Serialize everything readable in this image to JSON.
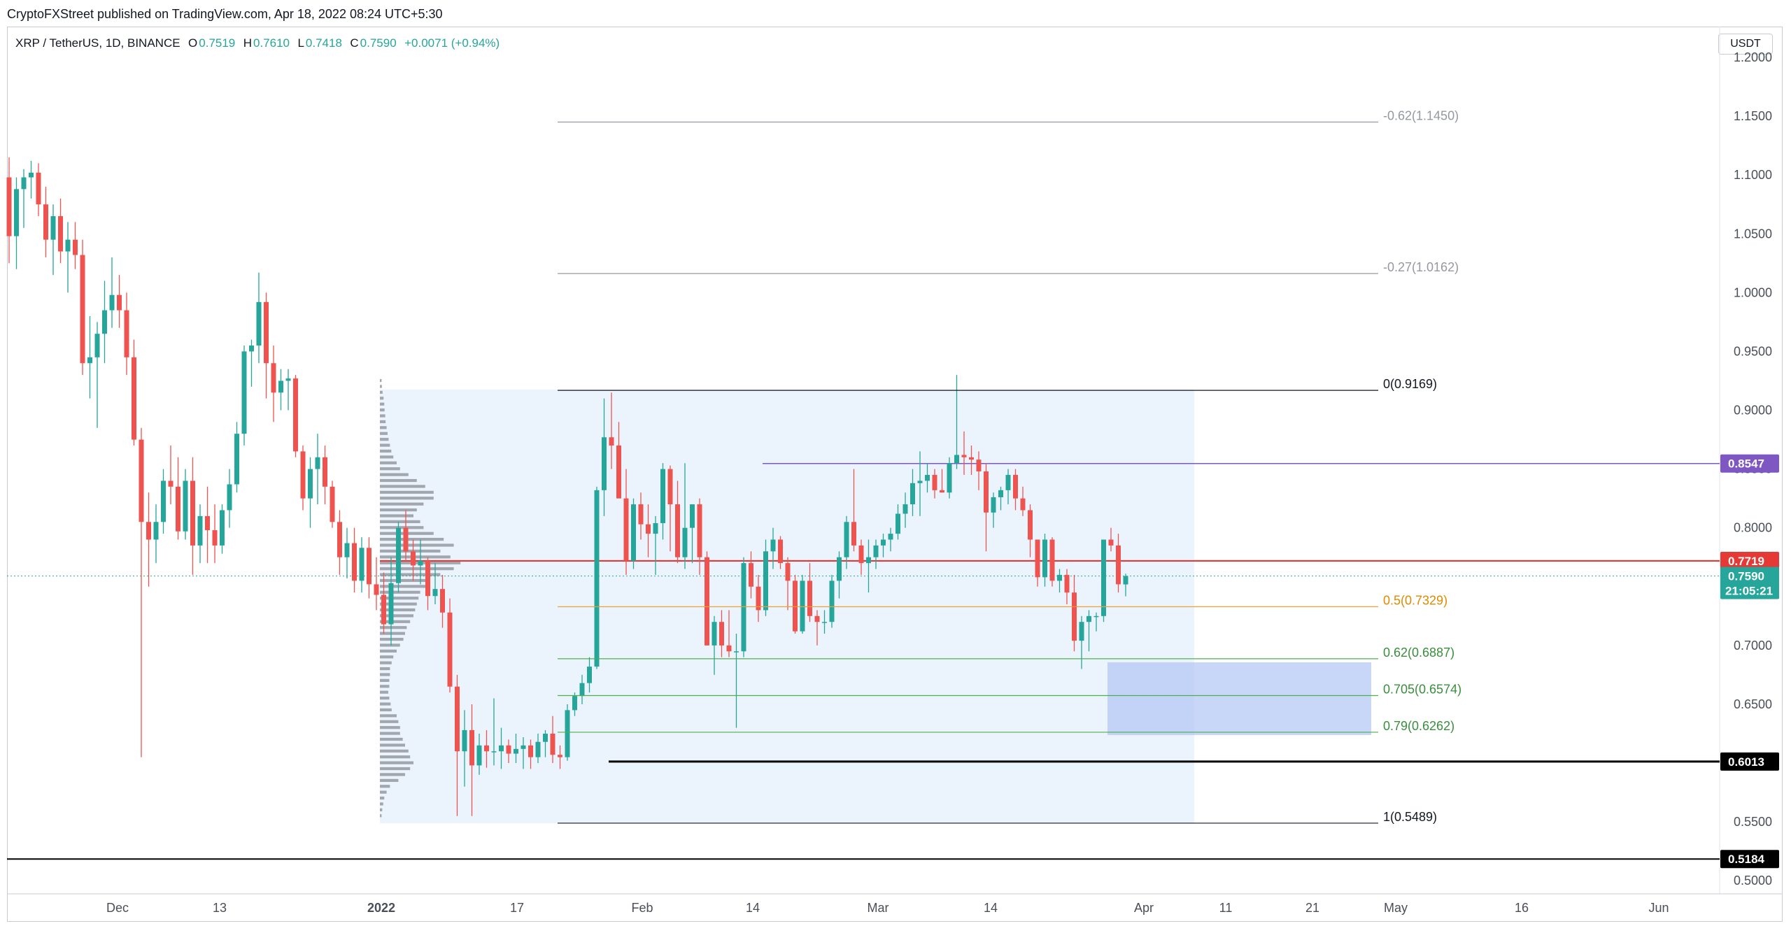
{
  "publisher": "CryptoFXStreet published on TradingView.com, Apr 18, 2022 08:24 UTC+5:30",
  "legend": {
    "symbol": "XRP / TetherUS, 1D, BINANCE",
    "o_label": "O",
    "o_value": "0.7519",
    "h_label": "H",
    "h_value": "0.7610",
    "l_label": "L",
    "l_value": "0.7418",
    "c_label": "C",
    "c_value": "0.7590",
    "change": "+0.0071 (+0.94%)"
  },
  "currency_button": "USDT",
  "colors": {
    "up": "#26a69a",
    "down": "#ef5350",
    "fib_orange": "#f0a030",
    "fib_green": "#4caf50",
    "purple": "#7e57c2",
    "red_line": "#e53935"
  },
  "chart_data": {
    "type": "candlestick",
    "ylim": [
      0.49,
      1.225
    ],
    "x_ticks": [
      "Dec",
      "13",
      "2022",
      "17",
      "Feb",
      "14",
      "Mar",
      "14",
      "Apr",
      "11",
      "21",
      "May",
      "16",
      "Jun"
    ],
    "y_ticks": [
      "1.2000",
      "1.1500",
      "1.1000",
      "1.0500",
      "1.0000",
      "0.9500",
      "0.9000",
      "0.8500",
      "0.8000",
      "0.7500",
      "0.7000",
      "0.6500",
      "0.6000",
      "0.5500",
      "0.5000"
    ],
    "candles": [
      [
        1.098,
        1.115,
        1.025,
        1.048
      ],
      [
        1.048,
        1.098,
        1.02,
        1.088
      ],
      [
        1.088,
        1.105,
        1.055,
        1.098
      ],
      [
        1.098,
        1.112,
        1.08,
        1.102
      ],
      [
        1.102,
        1.11,
        1.065,
        1.075
      ],
      [
        1.075,
        1.09,
        1.03,
        1.045
      ],
      [
        1.045,
        1.075,
        1.015,
        1.065
      ],
      [
        1.065,
        1.08,
        1.025,
        1.035
      ],
      [
        1.035,
        1.06,
        1.0,
        1.045
      ],
      [
        1.045,
        1.06,
        1.02,
        1.032
      ],
      [
        1.032,
        1.045,
        0.93,
        0.94
      ],
      [
        0.94,
        0.98,
        0.91,
        0.945
      ],
      [
        0.945,
        0.975,
        0.885,
        0.965
      ],
      [
        0.965,
        1.01,
        0.94,
        0.985
      ],
      [
        0.985,
        1.03,
        0.97,
        0.998
      ],
      [
        0.998,
        1.015,
        0.97,
        0.985
      ],
      [
        0.985,
        1.0,
        0.93,
        0.945
      ],
      [
        0.945,
        0.96,
        0.87,
        0.875
      ],
      [
        0.875,
        0.885,
        0.605,
        0.805
      ],
      [
        0.805,
        0.83,
        0.75,
        0.79
      ],
      [
        0.79,
        0.82,
        0.77,
        0.805
      ],
      [
        0.805,
        0.85,
        0.795,
        0.84
      ],
      [
        0.84,
        0.87,
        0.82,
        0.835
      ],
      [
        0.835,
        0.86,
        0.79,
        0.797
      ],
      [
        0.797,
        0.85,
        0.79,
        0.84
      ],
      [
        0.84,
        0.86,
        0.76,
        0.785
      ],
      [
        0.785,
        0.82,
        0.77,
        0.81
      ],
      [
        0.81,
        0.835,
        0.77,
        0.798
      ],
      [
        0.798,
        0.82,
        0.77,
        0.785
      ],
      [
        0.785,
        0.82,
        0.778,
        0.815
      ],
      [
        0.815,
        0.85,
        0.8,
        0.837
      ],
      [
        0.837,
        0.89,
        0.83,
        0.88
      ],
      [
        0.88,
        0.955,
        0.87,
        0.95
      ],
      [
        0.95,
        0.96,
        0.92,
        0.955
      ],
      [
        0.955,
        1.017,
        0.94,
        0.992
      ],
      [
        0.992,
        1.0,
        0.91,
        0.94
      ],
      [
        0.94,
        0.955,
        0.89,
        0.915
      ],
      [
        0.915,
        0.935,
        0.9,
        0.925
      ],
      [
        0.925,
        0.935,
        0.9,
        0.927
      ],
      [
        0.927,
        0.93,
        0.86,
        0.865
      ],
      [
        0.865,
        0.87,
        0.815,
        0.825
      ],
      [
        0.825,
        0.86,
        0.8,
        0.85
      ],
      [
        0.85,
        0.88,
        0.82,
        0.86
      ],
      [
        0.86,
        0.87,
        0.82,
        0.835
      ],
      [
        0.835,
        0.84,
        0.8,
        0.805
      ],
      [
        0.805,
        0.815,
        0.76,
        0.775
      ],
      [
        0.775,
        0.8,
        0.757,
        0.787
      ],
      [
        0.787,
        0.8,
        0.745,
        0.755
      ],
      [
        0.755,
        0.792,
        0.745,
        0.783
      ],
      [
        0.783,
        0.792,
        0.74,
        0.752
      ],
      [
        0.752,
        0.775,
        0.73,
        0.743
      ],
      [
        0.743,
        0.762,
        0.71,
        0.718
      ],
      [
        0.718,
        0.775,
        0.7,
        0.753
      ],
      [
        0.753,
        0.805,
        0.745,
        0.8
      ],
      [
        0.8,
        0.815,
        0.772,
        0.78
      ],
      [
        0.78,
        0.79,
        0.755,
        0.768
      ],
      [
        0.768,
        0.79,
        0.752,
        0.772
      ],
      [
        0.772,
        0.775,
        0.73,
        0.742
      ],
      [
        0.742,
        0.77,
        0.735,
        0.748
      ],
      [
        0.748,
        0.76,
        0.715,
        0.728
      ],
      [
        0.728,
        0.74,
        0.66,
        0.665
      ],
      [
        0.665,
        0.675,
        0.555,
        0.61
      ],
      [
        0.61,
        0.645,
        0.58,
        0.628
      ],
      [
        0.628,
        0.65,
        0.555,
        0.598
      ],
      [
        0.598,
        0.625,
        0.59,
        0.615
      ],
      [
        0.615,
        0.628,
        0.596,
        0.61
      ],
      [
        0.61,
        0.655,
        0.598,
        0.61
      ],
      [
        0.61,
        0.63,
        0.595,
        0.615
      ],
      [
        0.615,
        0.62,
        0.6,
        0.608
      ],
      [
        0.608,
        0.625,
        0.6,
        0.612
      ],
      [
        0.612,
        0.622,
        0.595,
        0.615
      ],
      [
        0.615,
        0.62,
        0.595,
        0.605
      ],
      [
        0.605,
        0.625,
        0.6,
        0.618
      ],
      [
        0.618,
        0.628,
        0.605,
        0.625
      ],
      [
        0.625,
        0.64,
        0.6,
        0.607
      ],
      [
        0.607,
        0.615,
        0.595,
        0.605
      ],
      [
        0.605,
        0.65,
        0.602,
        0.645
      ],
      [
        0.645,
        0.66,
        0.64,
        0.657
      ],
      [
        0.657,
        0.675,
        0.65,
        0.668
      ],
      [
        0.668,
        0.69,
        0.66,
        0.682
      ],
      [
        0.682,
        0.835,
        0.68,
        0.832
      ],
      [
        0.832,
        0.91,
        0.81,
        0.877
      ],
      [
        0.877,
        0.915,
        0.85,
        0.87
      ],
      [
        0.87,
        0.89,
        0.83,
        0.825
      ],
      [
        0.825,
        0.85,
        0.76,
        0.772
      ],
      [
        0.772,
        0.825,
        0.765,
        0.82
      ],
      [
        0.82,
        0.83,
        0.79,
        0.803
      ],
      [
        0.803,
        0.82,
        0.775,
        0.795
      ],
      [
        0.795,
        0.81,
        0.76,
        0.804
      ],
      [
        0.804,
        0.855,
        0.79,
        0.85
      ],
      [
        0.85,
        0.853,
        0.78,
        0.82
      ],
      [
        0.82,
        0.84,
        0.77,
        0.775
      ],
      [
        0.775,
        0.855,
        0.765,
        0.8
      ],
      [
        0.8,
        0.82,
        0.77,
        0.82
      ],
      [
        0.82,
        0.825,
        0.76,
        0.775
      ],
      [
        0.775,
        0.78,
        0.7,
        0.7
      ],
      [
        0.7,
        0.725,
        0.675,
        0.72
      ],
      [
        0.72,
        0.73,
        0.69,
        0.7
      ],
      [
        0.7,
        0.73,
        0.69,
        0.695
      ],
      [
        0.695,
        0.71,
        0.63,
        0.695
      ],
      [
        0.695,
        0.775,
        0.69,
        0.77
      ],
      [
        0.77,
        0.78,
        0.74,
        0.75
      ],
      [
        0.75,
        0.76,
        0.72,
        0.73
      ],
      [
        0.73,
        0.79,
        0.725,
        0.78
      ],
      [
        0.78,
        0.8,
        0.765,
        0.79
      ],
      [
        0.79,
        0.793,
        0.765,
        0.77
      ],
      [
        0.77,
        0.775,
        0.73,
        0.755
      ],
      [
        0.755,
        0.76,
        0.71,
        0.712
      ],
      [
        0.712,
        0.76,
        0.71,
        0.755
      ],
      [
        0.755,
        0.77,
        0.72,
        0.725
      ],
      [
        0.725,
        0.73,
        0.7,
        0.72
      ],
      [
        0.72,
        0.73,
        0.71,
        0.72
      ],
      [
        0.72,
        0.76,
        0.715,
        0.755
      ],
      [
        0.755,
        0.78,
        0.74,
        0.775
      ],
      [
        0.775,
        0.81,
        0.765,
        0.805
      ],
      [
        0.805,
        0.85,
        0.78,
        0.785
      ],
      [
        0.785,
        0.79,
        0.76,
        0.77
      ],
      [
        0.77,
        0.79,
        0.745,
        0.775
      ],
      [
        0.775,
        0.79,
        0.765,
        0.785
      ],
      [
        0.785,
        0.795,
        0.775,
        0.79
      ],
      [
        0.79,
        0.8,
        0.78,
        0.795
      ],
      [
        0.795,
        0.82,
        0.79,
        0.812
      ],
      [
        0.812,
        0.83,
        0.8,
        0.82
      ],
      [
        0.82,
        0.85,
        0.81,
        0.838
      ],
      [
        0.838,
        0.865,
        0.81,
        0.84
      ],
      [
        0.84,
        0.855,
        0.83,
        0.845
      ],
      [
        0.845,
        0.85,
        0.825,
        0.832
      ],
      [
        0.832,
        0.85,
        0.83,
        0.83
      ],
      [
        0.83,
        0.86,
        0.825,
        0.855
      ],
      [
        0.855,
        0.93,
        0.85,
        0.862
      ],
      [
        0.862,
        0.882,
        0.845,
        0.86
      ],
      [
        0.86,
        0.87,
        0.845,
        0.858
      ],
      [
        0.858,
        0.865,
        0.832,
        0.848
      ],
      [
        0.848,
        0.855,
        0.78,
        0.813
      ],
      [
        0.813,
        0.83,
        0.8,
        0.826
      ],
      [
        0.826,
        0.835,
        0.815,
        0.832
      ],
      [
        0.832,
        0.85,
        0.82,
        0.845
      ],
      [
        0.845,
        0.85,
        0.815,
        0.825
      ],
      [
        0.825,
        0.835,
        0.81,
        0.815
      ],
      [
        0.815,
        0.82,
        0.775,
        0.79
      ],
      [
        0.79,
        0.79,
        0.75,
        0.758
      ],
      [
        0.758,
        0.795,
        0.75,
        0.79
      ],
      [
        0.79,
        0.792,
        0.75,
        0.755
      ],
      [
        0.755,
        0.765,
        0.745,
        0.76
      ],
      [
        0.76,
        0.765,
        0.735,
        0.745
      ],
      [
        0.745,
        0.76,
        0.695,
        0.704
      ],
      [
        0.704,
        0.725,
        0.68,
        0.72
      ],
      [
        0.72,
        0.73,
        0.695,
        0.725
      ],
      [
        0.725,
        0.728,
        0.712,
        0.725
      ],
      [
        0.725,
        0.79,
        0.72,
        0.79
      ],
      [
        0.79,
        0.8,
        0.78,
        0.785
      ],
      [
        0.785,
        0.795,
        0.745,
        0.752
      ],
      [
        0.7519,
        0.761,
        0.7418,
        0.759
      ]
    ],
    "volume_profile": [
      [
        0.925,
        0.005
      ],
      [
        0.92,
        0.006
      ],
      [
        0.915,
        0.008
      ],
      [
        0.91,
        0.011
      ],
      [
        0.905,
        0.013
      ],
      [
        0.9,
        0.014
      ],
      [
        0.895,
        0.016
      ],
      [
        0.89,
        0.017
      ],
      [
        0.885,
        0.02
      ],
      [
        0.88,
        0.023
      ],
      [
        0.875,
        0.026
      ],
      [
        0.87,
        0.03
      ],
      [
        0.865,
        0.034
      ],
      [
        0.86,
        0.04
      ],
      [
        0.855,
        0.05
      ],
      [
        0.85,
        0.06
      ],
      [
        0.845,
        0.085
      ],
      [
        0.84,
        0.11
      ],
      [
        0.835,
        0.135
      ],
      [
        0.83,
        0.16
      ],
      [
        0.825,
        0.16
      ],
      [
        0.82,
        0.13
      ],
      [
        0.815,
        0.11
      ],
      [
        0.81,
        0.1
      ],
      [
        0.805,
        0.12
      ],
      [
        0.8,
        0.13
      ],
      [
        0.795,
        0.16
      ],
      [
        0.79,
        0.19
      ],
      [
        0.785,
        0.22
      ],
      [
        0.78,
        0.18
      ],
      [
        0.775,
        0.21
      ],
      [
        0.77,
        0.24
      ],
      [
        0.765,
        0.22
      ],
      [
        0.76,
        0.18
      ],
      [
        0.755,
        0.15
      ],
      [
        0.75,
        0.14
      ],
      [
        0.745,
        0.12
      ],
      [
        0.74,
        0.115
      ],
      [
        0.735,
        0.11
      ],
      [
        0.73,
        0.105
      ],
      [
        0.725,
        0.1
      ],
      [
        0.72,
        0.09
      ],
      [
        0.715,
        0.08
      ],
      [
        0.71,
        0.075
      ],
      [
        0.705,
        0.07
      ],
      [
        0.7,
        0.06
      ],
      [
        0.695,
        0.05
      ],
      [
        0.69,
        0.04
      ],
      [
        0.685,
        0.035
      ],
      [
        0.68,
        0.03
      ],
      [
        0.675,
        0.03
      ],
      [
        0.67,
        0.028
      ],
      [
        0.665,
        0.028
      ],
      [
        0.66,
        0.025
      ],
      [
        0.655,
        0.028
      ],
      [
        0.65,
        0.032
      ],
      [
        0.645,
        0.035
      ],
      [
        0.64,
        0.05
      ],
      [
        0.635,
        0.055
      ],
      [
        0.63,
        0.06
      ],
      [
        0.625,
        0.06
      ],
      [
        0.62,
        0.068
      ],
      [
        0.615,
        0.075
      ],
      [
        0.61,
        0.085
      ],
      [
        0.605,
        0.09
      ],
      [
        0.6,
        0.1
      ],
      [
        0.595,
        0.09
      ],
      [
        0.59,
        0.075
      ],
      [
        0.585,
        0.055
      ],
      [
        0.58,
        0.03
      ],
      [
        0.575,
        0.02
      ],
      [
        0.57,
        0.013
      ],
      [
        0.565,
        0.01
      ],
      [
        0.56,
        0.007
      ],
      [
        0.555,
        0.005
      ]
    ],
    "levels": [
      {
        "label": "-0.62(1.1450)",
        "value": 1.145,
        "style": "fib_grey"
      },
      {
        "label": "-0.27(1.0162)",
        "value": 1.0162,
        "style": "fib_grey"
      },
      {
        "label": "0(0.9169)",
        "value": 0.9169,
        "style": "fib_black"
      },
      {
        "label": "0.5(0.7329)",
        "value": 0.7329,
        "style": "fib_orange"
      },
      {
        "label": "0.62(0.6887)",
        "value": 0.6887,
        "style": "fib_green"
      },
      {
        "label": "0.705(0.6574)",
        "value": 0.6574,
        "style": "fib_green"
      },
      {
        "label": "0.79(0.6262)",
        "value": 0.6262,
        "style": "fib_green"
      },
      {
        "label": "1(0.5489)",
        "value": 0.5489,
        "style": "fib_black"
      }
    ],
    "price_tags": [
      {
        "label": "0.8547",
        "value": 0.8547,
        "color": "#7e57c2"
      },
      {
        "label": "0.7719",
        "value": 0.7719,
        "color": "#e53935"
      },
      {
        "label": "0.7590",
        "value": 0.759,
        "color": "#26a69a",
        "timer": "21:05:21"
      },
      {
        "label": "0.6013",
        "value": 0.6013,
        "color": "#000000"
      },
      {
        "label": "0.5184",
        "value": 0.5184,
        "color": "#000000"
      }
    ]
  }
}
